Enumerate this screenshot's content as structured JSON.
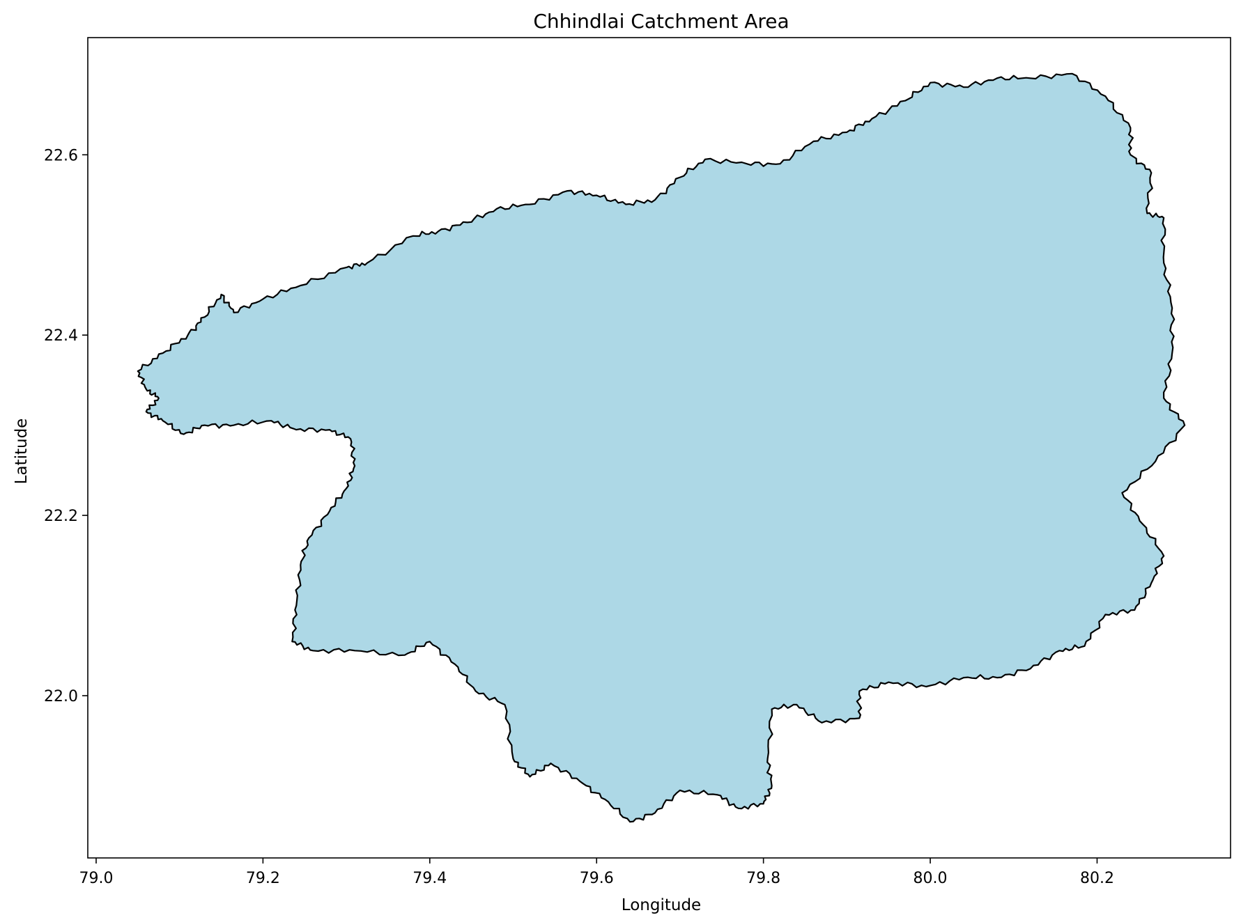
{
  "chart_data": {
    "type": "map",
    "title": "Chhindlai Catchment Area",
    "xlabel": "Longitude",
    "ylabel": "Latitude",
    "xlim": [
      78.99,
      80.36
    ],
    "ylim": [
      21.82,
      22.73
    ],
    "xticks": [
      {
        "value": 79.0,
        "label": "79.0"
      },
      {
        "value": 79.2,
        "label": "79.2"
      },
      {
        "value": 79.4,
        "label": "79.4"
      },
      {
        "value": 79.6,
        "label": "79.6"
      },
      {
        "value": 79.8,
        "label": "79.8"
      },
      {
        "value": 80.0,
        "label": "80.0"
      },
      {
        "value": 80.2,
        "label": "80.2"
      }
    ],
    "yticks": [
      {
        "value": 22.0,
        "label": "22.0"
      },
      {
        "value": 22.2,
        "label": "22.2"
      },
      {
        "value": 22.4,
        "label": "22.4"
      },
      {
        "value": 22.6,
        "label": "22.6"
      }
    ],
    "grid": false,
    "fill_color": "#add8e6",
    "edge_color": "#000000",
    "boundary": [
      [
        79.05,
        22.36
      ],
      [
        79.08,
        22.38
      ],
      [
        79.11,
        22.4
      ],
      [
        79.13,
        22.42
      ],
      [
        79.15,
        22.445
      ],
      [
        79.165,
        22.425
      ],
      [
        79.2,
        22.44
      ],
      [
        79.245,
        22.455
      ],
      [
        79.3,
        22.475
      ],
      [
        79.325,
        22.48
      ],
      [
        79.38,
        22.51
      ],
      [
        79.41,
        22.515
      ],
      [
        79.445,
        22.525
      ],
      [
        79.48,
        22.54
      ],
      [
        79.52,
        22.545
      ],
      [
        79.565,
        22.56
      ],
      [
        79.6,
        22.555
      ],
      [
        79.635,
        22.545
      ],
      [
        79.67,
        22.55
      ],
      [
        79.7,
        22.575
      ],
      [
        79.73,
        22.595
      ],
      [
        79.78,
        22.59
      ],
      [
        79.82,
        22.59
      ],
      [
        79.86,
        22.615
      ],
      [
        79.9,
        22.625
      ],
      [
        79.93,
        22.64
      ],
      [
        79.97,
        22.66
      ],
      [
        80.0,
        22.68
      ],
      [
        80.04,
        22.675
      ],
      [
        80.08,
        22.685
      ],
      [
        80.12,
        22.685
      ],
      [
        80.17,
        22.69
      ],
      [
        80.21,
        22.665
      ],
      [
        80.24,
        22.63
      ],
      [
        80.24,
        22.6
      ],
      [
        80.265,
        22.58
      ],
      [
        80.26,
        22.535
      ],
      [
        80.28,
        22.53
      ],
      [
        80.28,
        22.48
      ],
      [
        80.29,
        22.43
      ],
      [
        80.29,
        22.38
      ],
      [
        80.28,
        22.33
      ],
      [
        80.305,
        22.3
      ],
      [
        80.27,
        22.26
      ],
      [
        80.23,
        22.225
      ],
      [
        80.255,
        22.19
      ],
      [
        80.28,
        22.155
      ],
      [
        80.265,
        22.125
      ],
      [
        80.245,
        22.095
      ],
      [
        80.21,
        22.09
      ],
      [
        80.185,
        22.055
      ],
      [
        80.155,
        22.05
      ],
      [
        80.12,
        22.03
      ],
      [
        80.08,
        22.02
      ],
      [
        80.04,
        22.02
      ],
      [
        79.995,
        22.01
      ],
      [
        79.95,
        22.015
      ],
      [
        79.915,
        22.005
      ],
      [
        79.915,
        21.975
      ],
      [
        79.87,
        21.97
      ],
      [
        79.84,
        21.99
      ],
      [
        79.81,
        21.985
      ],
      [
        79.805,
        21.93
      ],
      [
        79.81,
        21.9
      ],
      [
        79.8,
        21.88
      ],
      [
        79.77,
        21.875
      ],
      [
        79.745,
        21.89
      ],
      [
        79.7,
        21.895
      ],
      [
        79.67,
        21.87
      ],
      [
        79.64,
        21.86
      ],
      [
        79.61,
        21.885
      ],
      [
        79.58,
        21.905
      ],
      [
        79.545,
        21.925
      ],
      [
        79.52,
        21.91
      ],
      [
        79.5,
        21.93
      ],
      [
        79.49,
        21.99
      ],
      [
        79.455,
        22.005
      ],
      [
        79.43,
        22.035
      ],
      [
        79.4,
        22.06
      ],
      [
        79.37,
        22.045
      ],
      [
        79.31,
        22.05
      ],
      [
        79.26,
        22.05
      ],
      [
        79.235,
        22.06
      ],
      [
        79.24,
        22.1
      ],
      [
        79.245,
        22.145
      ],
      [
        79.255,
        22.175
      ],
      [
        79.28,
        22.205
      ],
      [
        79.3,
        22.23
      ],
      [
        79.31,
        22.255
      ],
      [
        79.305,
        22.285
      ],
      [
        79.28,
        22.295
      ],
      [
        79.24,
        22.295
      ],
      [
        79.21,
        22.305
      ],
      [
        79.165,
        22.3
      ],
      [
        79.13,
        22.3
      ],
      [
        79.105,
        22.29
      ],
      [
        79.08,
        22.305
      ],
      [
        79.06,
        22.315
      ],
      [
        79.075,
        22.33
      ],
      [
        79.06,
        22.34
      ]
    ]
  }
}
